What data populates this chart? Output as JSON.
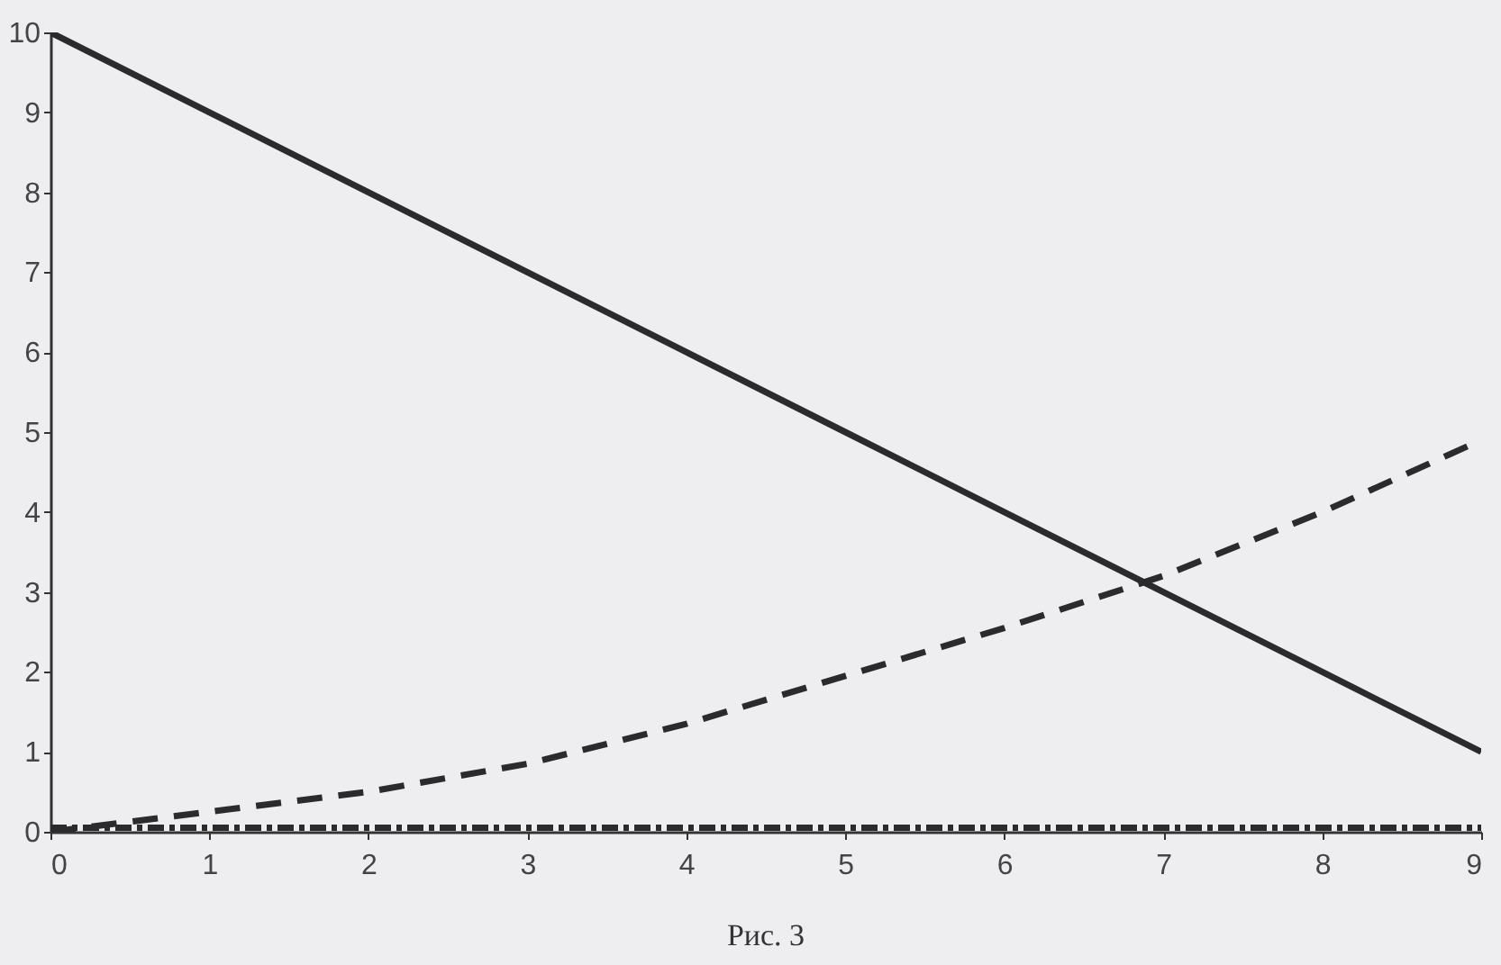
{
  "chart_data": {
    "type": "line",
    "x": [
      0,
      1,
      2,
      3,
      4,
      5,
      6,
      7,
      8,
      9
    ],
    "series": [
      {
        "color": "#2b2b2d",
        "line_style": "solid",
        "values": [
          10,
          9,
          8,
          7,
          6,
          5,
          4,
          3,
          2,
          1
        ]
      },
      {
        "color": "#2b2b2d",
        "line_style": "dashed",
        "values": [
          0,
          0.25,
          0.5,
          0.85,
          1.35,
          1.95,
          2.55,
          3.2,
          4,
          4.9
        ]
      },
      {
        "color": "#2b2b2d",
        "line_style": "dashdot",
        "values": [
          0.05,
          0.05,
          0.05,
          0.05,
          0.05,
          0.05,
          0.05,
          0.05,
          0.05,
          0.05
        ]
      }
    ],
    "xlim": [
      0,
      9
    ],
    "ylim": [
      0,
      10
    ],
    "xticks": [
      0,
      1,
      2,
      3,
      4,
      5,
      6,
      7,
      8,
      9
    ],
    "yticks": [
      0,
      1,
      2,
      3,
      4,
      5,
      6,
      7,
      8,
      9,
      10
    ],
    "grid": false,
    "marker": "none",
    "annotations": [
      "Рис. 3"
    ]
  }
}
